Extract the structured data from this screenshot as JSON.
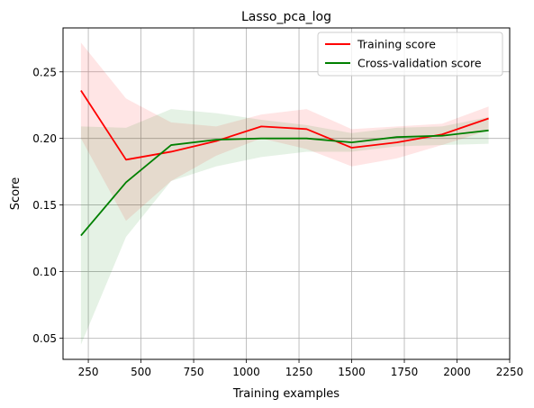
{
  "chart_data": {
    "type": "line",
    "title": "Lasso_pca_log",
    "xlabel": "Training examples",
    "ylabel": "Score",
    "xlim": [
      130,
      2250
    ],
    "ylim": [
      0.034,
      0.283
    ],
    "xticks": [
      250,
      500,
      750,
      1000,
      1250,
      1500,
      1750,
      2000,
      2250
    ],
    "yticks": [
      0.05,
      0.1,
      0.15,
      0.2,
      0.25
    ],
    "xtick_labels": [
      "250",
      "500",
      "750",
      "1000",
      "1250",
      "1500",
      "1750",
      "2000",
      "2250"
    ],
    "ytick_labels": [
      "0.05",
      "0.10",
      "0.15",
      "0.20",
      "0.25"
    ],
    "grid": true,
    "legend_position": "top-right",
    "x": [
      215,
      429,
      643,
      857,
      1071,
      1286,
      1500,
      1714,
      1929,
      2150
    ],
    "series": [
      {
        "name": "Training score",
        "color": "#ff0000",
        "values": [
          0.236,
          0.184,
          0.19,
          0.198,
          0.209,
          0.207,
          0.193,
          0.197,
          0.203,
          0.215
        ],
        "band_upper": [
          0.272,
          0.23,
          0.212,
          0.209,
          0.218,
          0.222,
          0.207,
          0.209,
          0.211,
          0.224
        ],
        "band_lower": [
          0.2,
          0.138,
          0.168,
          0.187,
          0.2,
          0.192,
          0.179,
          0.185,
          0.195,
          0.206
        ]
      },
      {
        "name": "Cross-validation score",
        "color": "#008000",
        "values": [
          0.127,
          0.167,
          0.195,
          0.199,
          0.2,
          0.2,
          0.197,
          0.201,
          0.202,
          0.206
        ],
        "band_upper": [
          0.209,
          0.208,
          0.222,
          0.219,
          0.214,
          0.21,
          0.204,
          0.208,
          0.209,
          0.216
        ],
        "band_lower": [
          0.045,
          0.126,
          0.168,
          0.179,
          0.186,
          0.19,
          0.19,
          0.194,
          0.195,
          0.196
        ]
      }
    ]
  }
}
